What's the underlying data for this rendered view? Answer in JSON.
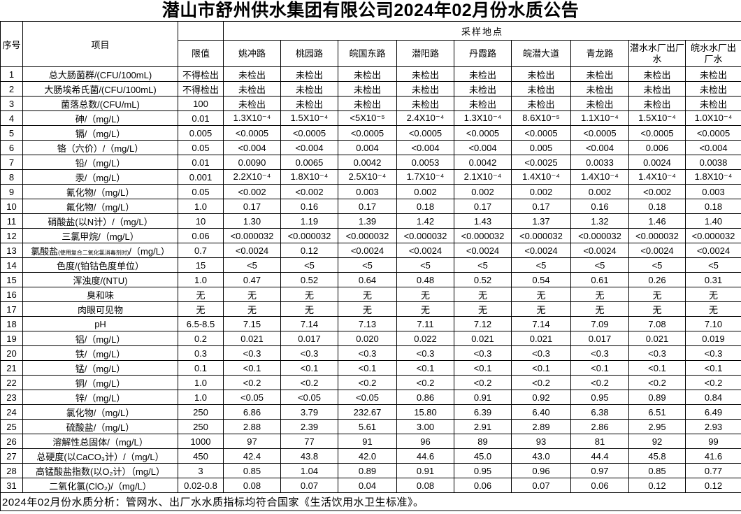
{
  "title": "潜山市舒州供水集团有限公司2024年02月份水质公告",
  "colors": {
    "background": "#ffffff",
    "text": "#000000",
    "border": "#000000"
  },
  "table": {
    "headers": {
      "index": "序号",
      "item": "项目",
      "limit": "限值",
      "sampling_sites_group": "采样地点",
      "sites": [
        "姚冲路",
        "桃园路",
        "皖国东路",
        "潜阳路",
        "丹霞路",
        "皖潜大道",
        "青龙路",
        "潜水水厂出厂水",
        "皖水水厂出厂水"
      ]
    },
    "rows": [
      {
        "no": "1",
        "item": "总大肠菌群/(CFU/100mL)",
        "limit": "不得检出",
        "values": [
          "未检出",
          "未检出",
          "未检出",
          "未检出",
          "未检出",
          "未检出",
          "未检出",
          "未检出",
          "未检出"
        ]
      },
      {
        "no": "2",
        "item": "大肠埃希氏菌/(CFU/100mL)",
        "limit": "不得检出",
        "values": [
          "未检出",
          "未检出",
          "未检出",
          "未检出",
          "未检出",
          "未检出",
          "未检出",
          "未检出",
          "未检出"
        ]
      },
      {
        "no": "3",
        "item": "菌落总数/(CFU/mL)",
        "limit": "100",
        "values": [
          "未检出",
          "未检出",
          "未检出",
          "未检出",
          "未检出",
          "未检出",
          "未检出",
          "未检出",
          "未检出"
        ]
      },
      {
        "no": "4",
        "item": "砷/（mg/L）",
        "limit": "0.01",
        "values": [
          "1.3X10⁻⁴",
          "1.5X10⁻⁴",
          "<5X10⁻⁵",
          "2.4X10⁻⁴",
          "1.3X10⁻⁴",
          "8.6X10⁻⁵",
          "1.1X10⁻⁴",
          "1.5X10⁻⁴",
          "1.0X10⁻⁴"
        ]
      },
      {
        "no": "5",
        "item": "镉/（mg/L）",
        "limit": "0.005",
        "values": [
          "<0.0005",
          "<0.0005",
          "<0.0005",
          "<0.0005",
          "<0.0005",
          "<0.0005",
          "<0.0005",
          "<0.0005",
          "<0.0005"
        ]
      },
      {
        "no": "6",
        "item": "铬（六价）/（mg/L）",
        "limit": "0.05",
        "values": [
          "<0.004",
          "<0.004",
          "0.004",
          "<0.004",
          "<0.004",
          "0.005",
          "<0.004",
          "0.006",
          "<0.004"
        ]
      },
      {
        "no": "7",
        "item": "铅/（mg/L）",
        "limit": "0.01",
        "values": [
          "0.0090",
          "0.0065",
          "0.0042",
          "0.0053",
          "0.0042",
          "<0.0025",
          "0.0033",
          "0.0024",
          "0.0038"
        ]
      },
      {
        "no": "8",
        "item": "汞/（mg/L）",
        "limit": "0.001",
        "values": [
          "2.2X10⁻⁴",
          "1.8X10⁻⁴",
          "2.5X10⁻⁴",
          "1.7X10⁻⁴",
          "2.1X10⁻⁴",
          "1.4X10⁻⁴",
          "1.4X10⁻⁴",
          "1.4X10⁻⁴",
          "1.8X10⁻⁴"
        ]
      },
      {
        "no": "9",
        "item": "氰化物/（mg/L）",
        "limit": "0.05",
        "values": [
          "<0.002",
          "<0.002",
          "0.003",
          "0.002",
          "0.002",
          "0.002",
          "0.002",
          "<0.002",
          "0.003"
        ]
      },
      {
        "no": "10",
        "item": "氟化物/（mg/L）",
        "limit": "1.0",
        "values": [
          "0.17",
          "0.16",
          "0.17",
          "0.18",
          "0.17",
          "0.17",
          "0.16",
          "0.18",
          "0.18"
        ]
      },
      {
        "no": "11",
        "item": "硝酸盐(以N计）/（mg/L）",
        "limit": "10",
        "values": [
          "1.30",
          "1.19",
          "1.39",
          "1.42",
          "1.43",
          "1.37",
          "1.32",
          "1.46",
          "1.40"
        ]
      },
      {
        "no": "12",
        "item": "三氯甲烷/（mg/L）",
        "limit": "0.06",
        "values": [
          "<0.000032",
          "<0.000032",
          "<0.000032",
          "<0.000032",
          "<0.000032",
          "<0.000032",
          "<0.000032",
          "<0.000032",
          "<0.000032"
        ]
      },
      {
        "no": "13",
        "item": "氯酸盐",
        "item_small": "(使用复合二氧化氯消毒剂时)",
        "item_suffix": "/（mg/L）",
        "limit": "0.7",
        "values": [
          "<0.0024",
          "0.12",
          "<0.0024",
          "<0.0024",
          "<0.0024",
          "<0.0024",
          "<0.0024",
          "<0.0024",
          "<0.0024"
        ]
      },
      {
        "no": "14",
        "item": "色度/(铂钴色度单位）",
        "limit": "15",
        "values": [
          "<5",
          "<5",
          "<5",
          "<5",
          "<5",
          "<5",
          "<5",
          "<5",
          "<5"
        ]
      },
      {
        "no": "15",
        "item": "浑浊度/(NTU)",
        "limit": "1.0",
        "values": [
          "0.47",
          "0.52",
          "0.64",
          "0.48",
          "0.52",
          "0.54",
          "0.61",
          "0.26",
          "0.31"
        ]
      },
      {
        "no": "16",
        "item": "臭和味",
        "limit": "无",
        "values": [
          "无",
          "无",
          "无",
          "无",
          "无",
          "无",
          "无",
          "无",
          "无"
        ]
      },
      {
        "no": "17",
        "item": "肉眼可见物",
        "limit": "无",
        "values": [
          "无",
          "无",
          "无",
          "无",
          "无",
          "无",
          "无",
          "无",
          "无"
        ]
      },
      {
        "no": "18",
        "item": "pH",
        "limit": "6.5-8.5",
        "values": [
          "7.15",
          "7.14",
          "7.13",
          "7.11",
          "7.12",
          "7.14",
          "7.09",
          "7.08",
          "7.10"
        ]
      },
      {
        "no": "19",
        "item": "铝/（mg/L）",
        "limit": "0.2",
        "values": [
          "0.021",
          "0.017",
          "0.020",
          "0.022",
          "0.021",
          "0.021",
          "0.017",
          "0.021",
          "0.019"
        ]
      },
      {
        "no": "20",
        "item": "铁/（mg/L）",
        "limit": "0.3",
        "values": [
          "<0.3",
          "<0.3",
          "<0.3",
          "<0.3",
          "<0.3",
          "<0.3",
          "<0.3",
          "<0.3",
          "<0.3"
        ]
      },
      {
        "no": "21",
        "item": "锰/（mg/L）",
        "limit": "0.1",
        "values": [
          "<0.1",
          "<0.1",
          "<0.1",
          "<0.1",
          "<0.1",
          "<0.1",
          "<0.1",
          "<0.1",
          "<0.1"
        ]
      },
      {
        "no": "22",
        "item": "铜/（mg/L）",
        "limit": "1.0",
        "values": [
          "<0.2",
          "<0.2",
          "<0.2",
          "<0.2",
          "<0.2",
          "<0.2",
          "<0.2",
          "<0.2",
          "<0.2"
        ]
      },
      {
        "no": "23",
        "item": "锌/（mg/L）",
        "limit": "1.0",
        "values": [
          "<0.05",
          "<0.05",
          "<0.05",
          "0.86",
          "0.91",
          "0.92",
          "0.95",
          "0.89",
          "0.84"
        ]
      },
      {
        "no": "24",
        "item": "氯化物/（mg/L）",
        "limit": "250",
        "values": [
          "6.86",
          "3.79",
          "232.67",
          "15.80",
          "6.39",
          "6.40",
          "6.38",
          "6.51",
          "6.49"
        ]
      },
      {
        "no": "25",
        "item": "硫酸盐/（mg/L）",
        "limit": "250",
        "values": [
          "2.88",
          "2.39",
          "5.61",
          "3.00",
          "2.91",
          "2.89",
          "2.86",
          "2.95",
          "2.93"
        ]
      },
      {
        "no": "26",
        "item": "溶解性总固体/（mg/L）",
        "limit": "1000",
        "values": [
          "97",
          "77",
          "91",
          "96",
          "89",
          "93",
          "81",
          "92",
          "99"
        ]
      },
      {
        "no": "27",
        "item": "总硬度(以CaCO₃计）/（mg/L）",
        "limit": "450",
        "values": [
          "42.4",
          "43.8",
          "42.0",
          "44.6",
          "45.0",
          "43.0",
          "44.4",
          "45.8",
          "41.6"
        ]
      },
      {
        "no": "28",
        "item": "高锰酸盐指数(以O₂计）（mg/L）",
        "limit": "3",
        "values": [
          "0.85",
          "1.04",
          "0.89",
          "0.91",
          "0.95",
          "0.96",
          "0.97",
          "0.85",
          "0.77"
        ]
      },
      {
        "no": "31",
        "item": "二氧化氯(ClO₂)/（mg/L）",
        "limit": "0.02-0.8",
        "values": [
          "0.08",
          "0.07",
          "0.04",
          "0.08",
          "0.06",
          "0.07",
          "0.06",
          "0.12",
          "0.12"
        ]
      }
    ],
    "footer": "2024年02月份水质分析：管网水、出厂水水质指标均符合国家《生活饮用水卫生标准》。"
  }
}
